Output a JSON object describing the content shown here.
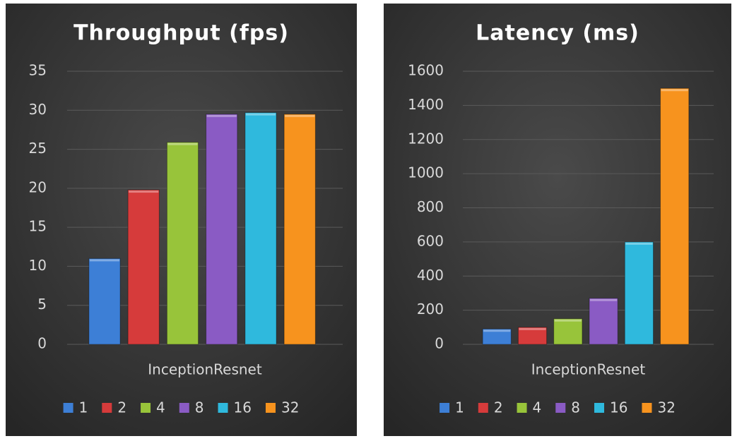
{
  "chart_data": [
    {
      "type": "bar",
      "title": "Throughput (fps)",
      "categories": [
        "InceptionResnet"
      ],
      "series": [
        {
          "name": "1",
          "color": "#3d7fd6",
          "values": [
            11
          ]
        },
        {
          "name": "2",
          "color": "#d63b3b",
          "values": [
            19.8
          ]
        },
        {
          "name": "4",
          "color": "#98c43a",
          "values": [
            25.9
          ]
        },
        {
          "name": "8",
          "color": "#8a5bc4",
          "values": [
            29.5
          ]
        },
        {
          "name": "16",
          "color": "#2fb9dd",
          "values": [
            29.7
          ]
        },
        {
          "name": "32",
          "color": "#f7931e",
          "values": [
            29.5
          ]
        }
      ],
      "ylim": [
        0,
        35
      ],
      "yticks": [
        0,
        5,
        10,
        15,
        20,
        25,
        30,
        35
      ],
      "grid": true
    },
    {
      "type": "bar",
      "title": "Latency (ms)",
      "categories": [
        "InceptionResnet"
      ],
      "series": [
        {
          "name": "1",
          "color": "#3d7fd6",
          "values": [
            90
          ]
        },
        {
          "name": "2",
          "color": "#d63b3b",
          "values": [
            100
          ]
        },
        {
          "name": "4",
          "color": "#98c43a",
          "values": [
            150
          ]
        },
        {
          "name": "8",
          "color": "#8a5bc4",
          "values": [
            270
          ]
        },
        {
          "name": "16",
          "color": "#2fb9dd",
          "values": [
            600
          ]
        },
        {
          "name": "32",
          "color": "#f7931e",
          "values": [
            1500
          ]
        }
      ],
      "ylim": [
        0,
        1600
      ],
      "yticks": [
        0,
        200,
        400,
        600,
        800,
        1000,
        1200,
        1400,
        1600
      ],
      "grid": true
    }
  ]
}
